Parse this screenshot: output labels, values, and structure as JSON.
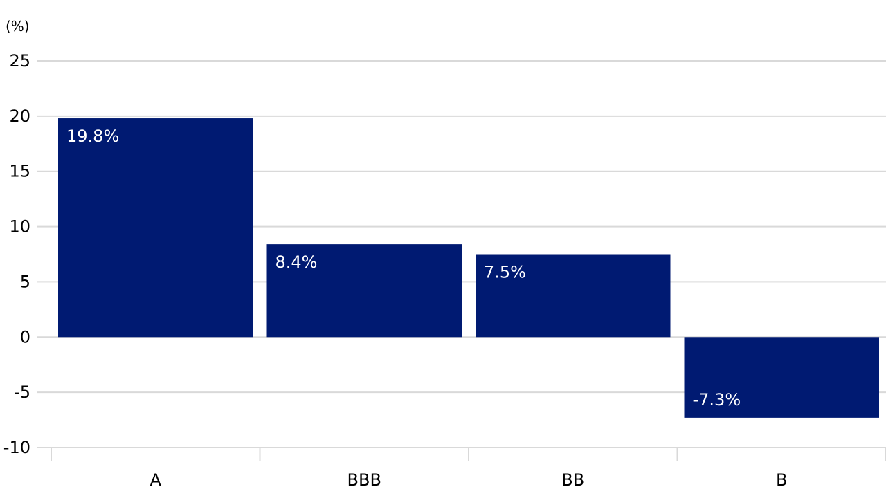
{
  "chart_data": {
    "type": "bar",
    "unit_label": "(%)",
    "categories": [
      "A",
      "BBB",
      "BB",
      "B"
    ],
    "values": [
      19.8,
      8.4,
      7.5,
      -7.3
    ],
    "data_labels": [
      "19.8%",
      "8.4%",
      "7.5%",
      "-7.3%"
    ],
    "ylim": [
      -10,
      25
    ],
    "yticks": [
      25,
      20,
      15,
      10,
      5,
      0,
      -5,
      -10
    ],
    "ytick_labels": [
      "25",
      "20",
      "15",
      "10",
      "5",
      "0",
      "-5",
      "-10"
    ],
    "grid": true,
    "bar_color": "#001A72",
    "grid_color": "#D9D9D9"
  }
}
